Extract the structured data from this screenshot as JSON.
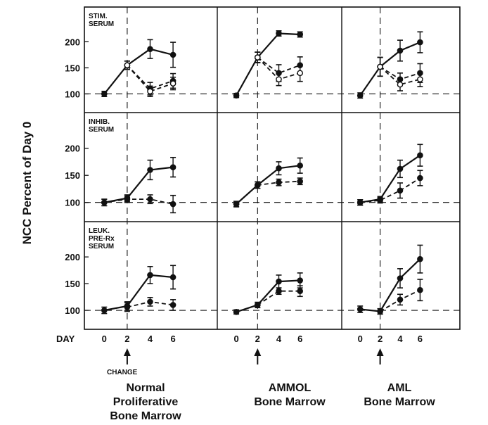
{
  "figure": {
    "ylabel": "NCC Percent of Day 0",
    "x_axis_name": "DAY",
    "change_label": "CHANGE",
    "columns": [
      {
        "lines": [
          "Normal",
          "Proliferative",
          "Bone Marrow"
        ]
      },
      {
        "lines": [
          "AMMOL",
          "Bone Marrow"
        ]
      },
      {
        "lines": [
          "AML",
          "Bone Marrow"
        ]
      }
    ],
    "rows": [
      {
        "lines": [
          "STIM.",
          "SERUM"
        ]
      },
      {
        "lines": [
          "INHIB.",
          "SERUM"
        ]
      },
      {
        "lines": [
          "LEUK.",
          "PRE-Rx",
          "SERUM"
        ]
      }
    ]
  },
  "chart_data": {
    "type": "line",
    "layout": "3x3 panel grid",
    "x_ticks": [
      0,
      2,
      4,
      6
    ],
    "y_ticks": [
      100,
      150,
      200
    ],
    "ylim": [
      75,
      245
    ],
    "xlim": [
      -1,
      9
    ],
    "reference_line_y": 100,
    "change_day": 2,
    "grid": false,
    "series_styles": [
      {
        "line": "solid",
        "marker": "filled-circle"
      },
      {
        "line": "dashed",
        "marker": "filled-circle"
      },
      {
        "line": "dashed",
        "marker": "open-circle"
      }
    ],
    "panels": [
      {
        "row": 0,
        "col": 0,
        "series": [
          {
            "x": [
              0,
              2,
              4,
              6
            ],
            "y": [
              100,
              155,
              186,
              175
            ],
            "err": [
              5,
              8,
              18,
              24
            ]
          },
          {
            "x": [
              2,
              4,
              6
            ],
            "y": [
              155,
              110,
              125
            ],
            "err": [
              8,
              12,
              14
            ]
          },
          {
            "x": [
              2,
              4,
              6
            ],
            "y": [
              155,
              105,
              120
            ],
            "err": [
              8,
              10,
              12
            ]
          }
        ]
      },
      {
        "row": 0,
        "col": 1,
        "series": [
          {
            "x": [
              0,
              2,
              4,
              6
            ],
            "y": [
              97,
              170,
              216,
              214
            ],
            "err": [
              4,
              10,
              5,
              5
            ]
          },
          {
            "x": [
              2,
              4,
              6
            ],
            "y": [
              170,
              140,
              155
            ],
            "err": [
              10,
              16,
              16
            ]
          },
          {
            "x": [
              2,
              4,
              6
            ],
            "y": [
              170,
              128,
              140
            ],
            "err": [
              10,
              12,
              16
            ]
          }
        ]
      },
      {
        "row": 0,
        "col": 2,
        "series": [
          {
            "x": [
              0,
              2,
              4,
              6
            ],
            "y": [
              97,
              152,
              183,
              199
            ],
            "err": [
              5,
              18,
              20,
              20
            ]
          },
          {
            "x": [
              2,
              4,
              6
            ],
            "y": [
              152,
              128,
              140
            ],
            "err": [
              18,
              12,
              18
            ]
          },
          {
            "x": [
              2,
              4,
              6
            ],
            "y": [
              152,
              118,
              128
            ],
            "err": [
              18,
              12,
              14
            ]
          }
        ]
      },
      {
        "row": 1,
        "col": 0,
        "series": [
          {
            "x": [
              0,
              2,
              4,
              6
            ],
            "y": [
              100,
              108,
              160,
              165
            ],
            "err": [
              6,
              6,
              18,
              18
            ]
          },
          {
            "x": [
              0,
              2,
              4,
              6
            ],
            "y": [
              100,
              106,
              106,
              97
            ],
            "err": [
              6,
              6,
              8,
              16
            ]
          }
        ]
      },
      {
        "row": 1,
        "col": 1,
        "series": [
          {
            "x": [
              0,
              2,
              4,
              6
            ],
            "y": [
              97,
              132,
              163,
              168
            ],
            "err": [
              5,
              6,
              12,
              14
            ]
          },
          {
            "x": [
              0,
              2,
              4,
              6
            ],
            "y": [
              97,
              132,
              137,
              139
            ],
            "err": [
              5,
              6,
              6,
              6
            ]
          }
        ]
      },
      {
        "row": 1,
        "col": 2,
        "series": [
          {
            "x": [
              0,
              2,
              4,
              6
            ],
            "y": [
              100,
              106,
              162,
              187
            ],
            "err": [
              5,
              5,
              16,
              20
            ]
          },
          {
            "x": [
              0,
              2,
              4,
              6
            ],
            "y": [
              100,
              104,
              122,
              145
            ],
            "err": [
              5,
              5,
              14,
              14
            ]
          }
        ]
      },
      {
        "row": 2,
        "col": 0,
        "series": [
          {
            "x": [
              0,
              2,
              4,
              6
            ],
            "y": [
              100,
              108,
              166,
              162
            ],
            "err": [
              6,
              8,
              16,
              22
            ]
          },
          {
            "x": [
              2,
              4,
              6
            ],
            "y": [
              106,
              116,
              110
            ],
            "err": [
              8,
              8,
              10
            ]
          }
        ]
      },
      {
        "row": 2,
        "col": 1,
        "series": [
          {
            "x": [
              0,
              2,
              4,
              6
            ],
            "y": [
              97,
              110,
              154,
              156
            ],
            "err": [
              4,
              5,
              12,
              14
            ]
          },
          {
            "x": [
              2,
              4,
              6
            ],
            "y": [
              110,
              136,
              136
            ],
            "err": [
              5,
              6,
              10
            ]
          }
        ]
      },
      {
        "row": 2,
        "col": 2,
        "series": [
          {
            "x": [
              0,
              2,
              4,
              6
            ],
            "y": [
              102,
              98,
              160,
              196
            ],
            "err": [
              6,
              5,
              18,
              26
            ]
          },
          {
            "x": [
              2,
              4,
              6
            ],
            "y": [
              98,
              120,
              138
            ],
            "err": [
              5,
              10,
              20
            ]
          }
        ]
      }
    ]
  }
}
